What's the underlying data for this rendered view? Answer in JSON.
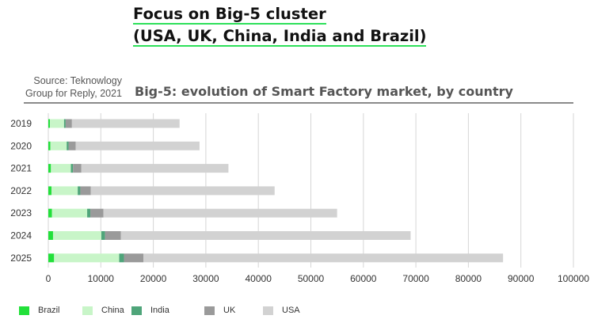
{
  "header": {
    "line1": "Focus on Big-5 cluster",
    "line2": "(USA, UK, China, India and Brazil)"
  },
  "source": {
    "line1": "Source: Teknowlogy",
    "line2": "Group for Reply, 2021"
  },
  "chart_data": {
    "type": "bar",
    "orientation": "horizontal",
    "stacked": true,
    "title": "Big-5: evolution of Smart Factory market, by country",
    "xlabel": "",
    "ylabel": "",
    "xlim": [
      0,
      100000
    ],
    "x_ticks": [
      0,
      10000,
      20000,
      30000,
      40000,
      50000,
      60000,
      70000,
      80000,
      90000,
      100000
    ],
    "grid": "vertical",
    "legend_position": "bottom",
    "categories": [
      "2019",
      "2020",
      "2021",
      "2022",
      "2023",
      "2024",
      "2025"
    ],
    "series": [
      {
        "name": "Brazil",
        "color": "#22e03a",
        "values": [
          300,
          400,
          500,
          600,
          700,
          900,
          1100
        ]
      },
      {
        "name": "China",
        "color": "#c8f5c8",
        "values": [
          2700,
          3100,
          3800,
          5000,
          6700,
          9200,
          12400
        ]
      },
      {
        "name": "India",
        "color": "#4fa57a",
        "values": [
          300,
          350,
          400,
          500,
          600,
          700,
          900
        ]
      },
      {
        "name": "UK",
        "color": "#9a9a9a",
        "values": [
          1200,
          1350,
          1600,
          2000,
          2500,
          3000,
          3700
        ]
      },
      {
        "name": "USA",
        "color": "#d2d2d2",
        "values": [
          20500,
          23600,
          28000,
          35000,
          44500,
          55200,
          68500
        ]
      }
    ]
  }
}
